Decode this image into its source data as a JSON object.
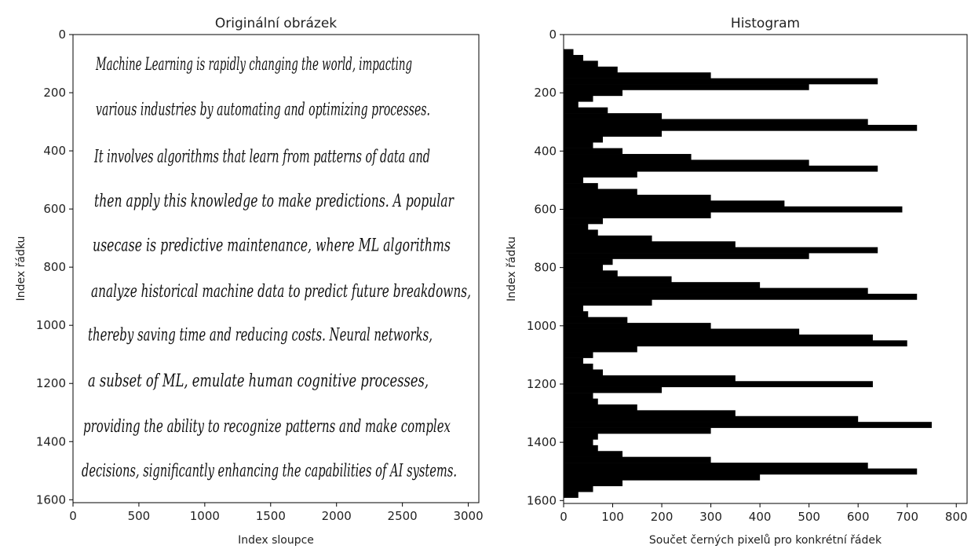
{
  "chart_data": [
    {
      "type": "image",
      "title": "Originální obrázek",
      "xlabel": "Index sloupce",
      "ylabel": "Index řádku",
      "xlim": [
        0,
        3080
      ],
      "ylim": [
        1610,
        0
      ],
      "xticks": [
        0,
        500,
        1000,
        1500,
        2000,
        2500,
        3000
      ],
      "yticks": [
        0,
        200,
        400,
        600,
        800,
        1000,
        1200,
        1400,
        1600
      ],
      "text_lines": [
        "Machine Learning is rapidly changing the world, impacting",
        "various industries by automating and optimizing processes.",
        "It involves algorithms that learn from patterns of data and",
        "then apply this knowledge to make predictions. A popular",
        "usecase is predictive maintenance, where ML algorithms",
        "analyze historical machine data to predict future breakdowns,",
        "thereby saving time and reducing costs. Neural networks,",
        "a subset of ML, emulate human cognitive processes,",
        "providing the ability to recognize patterns and make complex",
        "decisions, significantly enhancing the capabilities of AI systems."
      ]
    },
    {
      "type": "barh",
      "title": "Histogram",
      "xlabel": "Součet černých pixelů pro konkrétní řádek",
      "ylabel": "Index řádku",
      "xlim": [
        0,
        822
      ],
      "ylim": [
        1610,
        0
      ],
      "xticks": [
        0,
        100,
        200,
        300,
        400,
        500,
        600,
        700,
        800
      ],
      "yticks": [
        0,
        200,
        400,
        600,
        800,
        1000,
        1200,
        1400,
        1600
      ],
      "color": "#000000",
      "x": [
        60,
        80,
        100,
        120,
        140,
        160,
        180,
        200,
        220,
        240,
        260,
        280,
        300,
        320,
        340,
        360,
        380,
        400,
        420,
        440,
        460,
        480,
        500,
        520,
        540,
        560,
        580,
        600,
        620,
        640,
        660,
        680,
        700,
        720,
        740,
        760,
        780,
        800,
        820,
        840,
        860,
        880,
        900,
        920,
        940,
        960,
        980,
        1000,
        1020,
        1040,
        1060,
        1080,
        1100,
        1120,
        1140,
        1160,
        1180,
        1200,
        1220,
        1240,
        1260,
        1280,
        1300,
        1320,
        1340,
        1360,
        1380,
        1400,
        1420,
        1440,
        1460,
        1480,
        1500,
        1520,
        1540,
        1560,
        1580
      ],
      "values": [
        20,
        40,
        70,
        110,
        300,
        640,
        500,
        120,
        60,
        30,
        90,
        200,
        620,
        720,
        200,
        80,
        60,
        120,
        260,
        500,
        640,
        150,
        40,
        70,
        150,
        300,
        450,
        690,
        300,
        80,
        50,
        70,
        180,
        350,
        640,
        500,
        100,
        80,
        110,
        220,
        400,
        620,
        720,
        180,
        40,
        50,
        130,
        300,
        480,
        630,
        700,
        150,
        60,
        40,
        60,
        80,
        350,
        630,
        200,
        60,
        70,
        150,
        350,
        600,
        750,
        300,
        70,
        60,
        70,
        120,
        300,
        620,
        720,
        400,
        120,
        60,
        30
      ]
    }
  ]
}
